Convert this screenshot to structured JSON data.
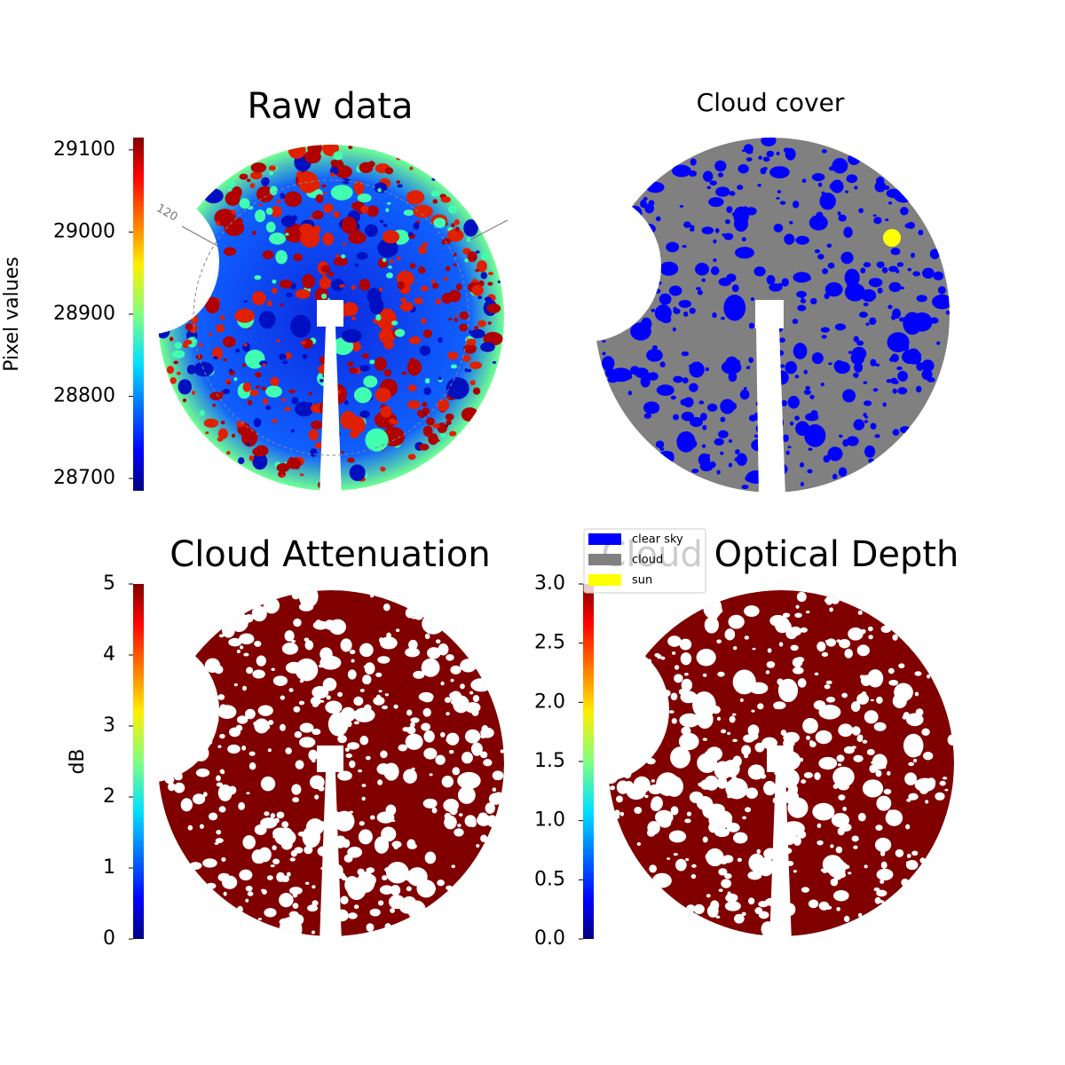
{
  "chart_data": [
    {
      "type": "image",
      "title": "Raw data",
      "annotations": [
        "120"
      ],
      "colorbar": {
        "label": "Pixel values",
        "cmap": "jet",
        "lim": [
          28685,
          29115
        ],
        "ticks": [
          28700,
          28800,
          28900,
          29000,
          29100
        ]
      }
    },
    {
      "type": "image",
      "title": "Cloud cover",
      "legend": {
        "entries": [
          {
            "name": "clear sky",
            "color": "#0000ff"
          },
          {
            "name": "cloud",
            "color": "#808080"
          },
          {
            "name": "sun",
            "color": "#ffff00"
          }
        ]
      }
    },
    {
      "type": "image",
      "title": "Cloud Attenuation",
      "colorbar": {
        "label": "dB",
        "cmap": "jet",
        "lim": [
          0,
          5
        ],
        "ticks": [
          0,
          1,
          2,
          3,
          4,
          5
        ]
      }
    },
    {
      "type": "image",
      "title": "Cloud Optical Depth",
      "colorbar": {
        "cmap": "jet",
        "lim": [
          0,
          3
        ],
        "ticks": [
          {
            "value": 0,
            "label": "0.0"
          },
          0.5,
          {
            "value": 1,
            "label": "1.0"
          },
          1.5,
          {
            "value": 2,
            "label": "2.0"
          },
          2.5,
          {
            "value": 3,
            "label": "3.0"
          }
        ]
      }
    }
  ]
}
